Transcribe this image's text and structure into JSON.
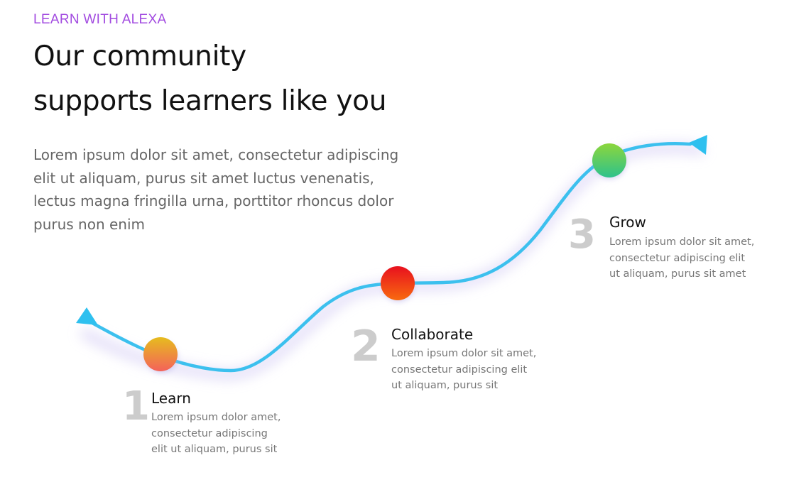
{
  "header": {
    "eyebrow": "LEARN WITH ALEXA",
    "title_lines": [
      "Our community",
      "supports learners like you"
    ]
  },
  "intro_lines": [
    "Lorem ipsum dolor sit amet, consectetur adipiscing",
    "elit ut aliquam, purus sit amet luctus venenatis,",
    "lectus magna fringilla urna, porttitor rhoncus dolor",
    "purus non enim"
  ],
  "colors": {
    "accent": "#a24be0",
    "path": "#3cc0ee",
    "step_number": "#cccccc"
  },
  "steps": [
    {
      "number": "1",
      "title": "Learn",
      "desc_lines": [
        "Lorem ipsum dolor amet,",
        "consectetur adipiscing",
        "elit ut aliquam, purus sit"
      ],
      "dot_colors": [
        "#e6bc1e",
        "#f4625a"
      ]
    },
    {
      "number": "2",
      "title": "Collaborate",
      "desc_lines": [
        "Lorem ipsum dolor sit amet,",
        "consectetur adipiscing elit",
        "ut aliquam, purus sit"
      ],
      "dot_colors": [
        "#e8101e",
        "#f86a10"
      ]
    },
    {
      "number": "3",
      "title": "Grow",
      "desc_lines": [
        "Lorem ipsum dolor sit amet,",
        "consectetur adipiscing elit",
        "ut aliquam, purus sit amet"
      ],
      "dot_colors": [
        "#8cd63c",
        "#2ec28c"
      ]
    }
  ]
}
